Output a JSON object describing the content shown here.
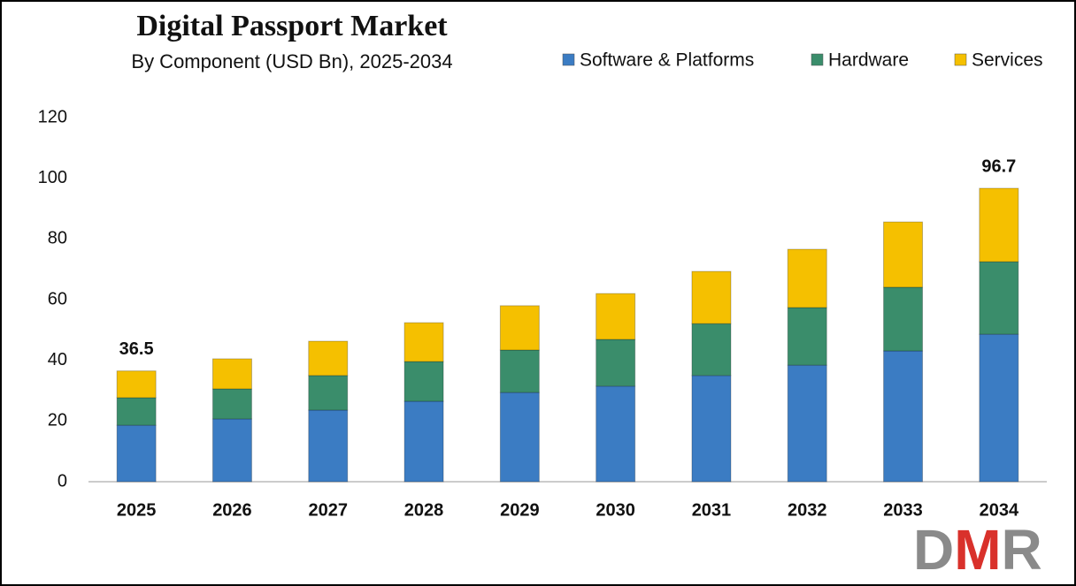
{
  "chart_data": {
    "type": "stacked_bar",
    "title": "Digital Passport Market",
    "subtitle": "By Component (USD Bn), 2025-2034",
    "categories": [
      "2025",
      "2026",
      "2027",
      "2028",
      "2029",
      "2030",
      "2031",
      "2032",
      "2033",
      "2034"
    ],
    "series": [
      {
        "name": "Software & Platforms",
        "color": "#3b7cc3",
        "values": [
          18.6,
          20.7,
          23.6,
          26.5,
          29.4,
          31.5,
          35.0,
          38.4,
          43.1,
          48.6
        ]
      },
      {
        "name": "Hardware",
        "color": "#3a8d6b",
        "values": [
          9.1,
          9.9,
          11.4,
          13.1,
          14.0,
          15.4,
          17.1,
          19.0,
          21.0,
          23.9
        ]
      },
      {
        "name": "Services",
        "color": "#f5c000",
        "values": [
          8.8,
          9.9,
          11.3,
          12.8,
          14.6,
          15.1,
          17.2,
          19.2,
          21.5,
          24.2
        ]
      }
    ],
    "total_labels": [
      {
        "category": "2025",
        "value": 36.5
      },
      {
        "category": "2034",
        "value": 96.7
      }
    ],
    "ylim": [
      0,
      120
    ],
    "yticks": [
      0,
      20,
      40,
      60,
      80,
      100,
      120
    ],
    "grid": false,
    "logo": [
      "D",
      "M",
      "R"
    ]
  }
}
